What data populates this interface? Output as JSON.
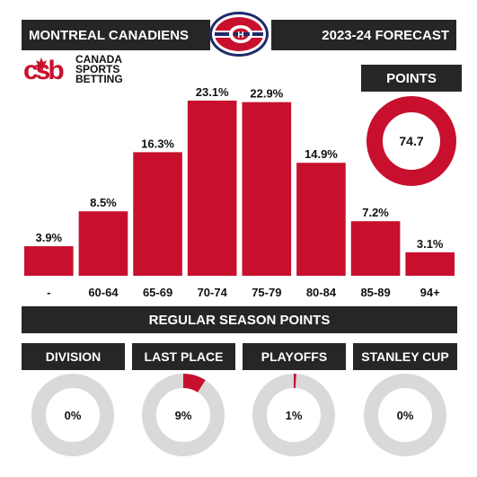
{
  "header": {
    "team": "MONTREAL CANADIENS",
    "season": "2023-24 FORECAST"
  },
  "brand": {
    "line1": "CANADA",
    "line2": "SPORTS",
    "line3": "BETTING"
  },
  "colors": {
    "accent": "#c8102e",
    "dark": "#262626",
    "track": "#d9d9d9",
    "logo_blue": "#1e2b6b"
  },
  "points": {
    "label": "POINTS",
    "value": "74.7"
  },
  "footer": {
    "label": "REGULAR SEASON POINTS"
  },
  "odds": [
    {
      "label": "DIVISION",
      "value": "0%",
      "fraction": 0.0
    },
    {
      "label": "LAST PLACE",
      "value": "9%",
      "fraction": 0.09
    },
    {
      "label": "PLAYOFFS",
      "value": "1%",
      "fraction": 0.01
    },
    {
      "label": "STANLEY CUP",
      "value": "0%",
      "fraction": 0.0
    }
  ],
  "chart_data": {
    "type": "bar",
    "categories": [
      "-",
      "60-64",
      "65-69",
      "70-74",
      "75-79",
      "80-84",
      "85-89",
      "94+"
    ],
    "values": [
      3.9,
      8.5,
      16.3,
      23.1,
      22.9,
      14.9,
      7.2,
      3.1
    ],
    "data_labels": [
      "3.9%",
      "8.5%",
      "16.3%",
      "23.1%",
      "22.9%",
      "14.9%",
      "7.2%",
      "3.1%"
    ],
    "title": "",
    "xlabel": "REGULAR SEASON POINTS",
    "ylabel": "",
    "ylim": [
      0,
      23.1
    ],
    "grid": false
  }
}
